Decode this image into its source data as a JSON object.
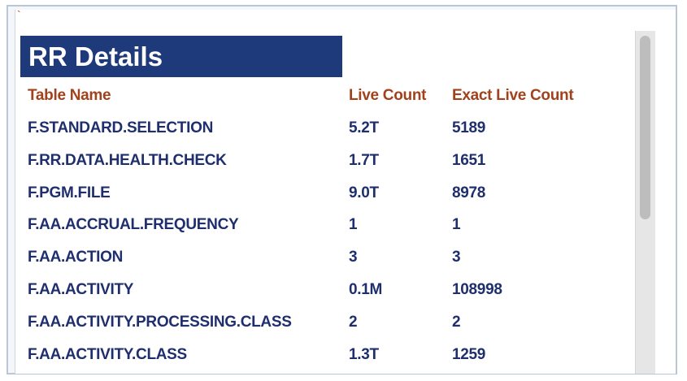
{
  "corner_mark": "`",
  "header": {
    "title": "RR Details"
  },
  "table": {
    "columns": [
      "Table Name",
      "Live Count",
      "Exact Live Count"
    ],
    "rows": [
      [
        "F.STANDARD.SELECTION",
        "5.2T",
        "5189"
      ],
      [
        "F.RR.DATA.HEALTH.CHECK",
        "1.7T",
        "1651"
      ],
      [
        "F.PGM.FILE",
        "9.0T",
        "8978"
      ],
      [
        "F.AA.ACCRUAL.FREQUENCY",
        "1",
        "1"
      ],
      [
        "F.AA.ACTION",
        "3",
        "3"
      ],
      [
        "F.AA.ACTIVITY",
        "0.1M",
        "108998"
      ],
      [
        "F.AA.ACTIVITY.PROCESSING.CLASS",
        "2",
        "2"
      ],
      [
        "F.AA.ACTIVITY.CLASS",
        "1.3T",
        "1259"
      ]
    ]
  }
}
